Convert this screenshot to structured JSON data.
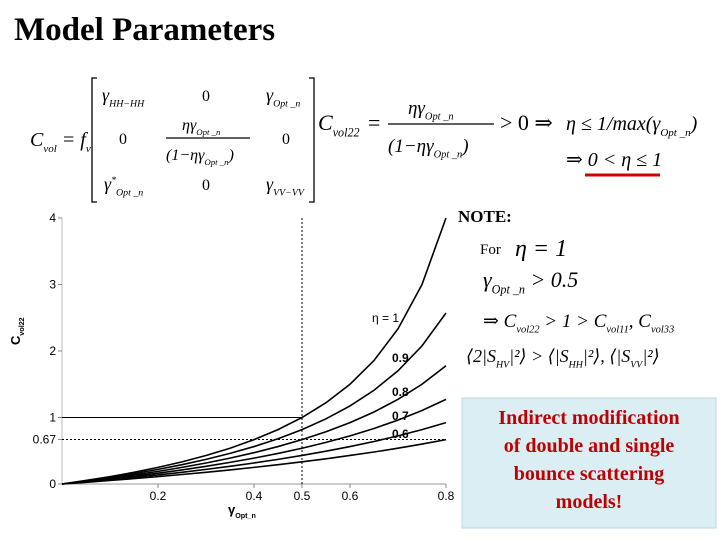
{
  "title": "Model Parameters",
  "equations": {
    "cvol": "C",
    "cvol_sub": "vol",
    "fv": " = f",
    "fv_sub": "v",
    "m11": "γ",
    "m11_sub": "HH−HH",
    "m12": "0",
    "m13": "γ",
    "m13_sub": "Opt _n",
    "m21": "0",
    "m22_num": "ηγ",
    "m22_num_sub": "Opt _n",
    "m22_den": "(1−ηγ",
    "m22_den_sub": "Opt _n",
    "m22_den_close": ")",
    "m23": "0",
    "m31": "γ",
    "m31_sup": "*",
    "m31_sub": "Opt _n",
    "m32": "0",
    "m33": "γ",
    "m33_sub": "VV−VV",
    "c22": "C",
    "c22_sub": "vol22",
    "eq": "=",
    "num": "ηγ",
    "num_sub": "Opt _n",
    "den": "(1−ηγ",
    "den_sub": "Opt _n",
    "den_close": ")",
    "gt": "> 0 ⇒",
    "cond1": "η ≤ 1/max(γ",
    "cond1_sub": "Opt _n",
    "cond1_close": ")",
    "cond2": "⇒ 0 < η ≤ 1"
  },
  "note": {
    "heading": "NOTE:",
    "for": "For",
    "eta": "η = 1",
    "g": "γ",
    "g_sub": "Opt _n",
    "g_rest": " > 0.5",
    "c_a": "⇒ C",
    "c_a_sub": "vol22",
    "c_b": " > 1 > C",
    "c_b_sub": "vol11",
    "c_c": ", C",
    "c_c_sub": "vol33",
    "s_a": "⟨2|S",
    "s_a_sub": "HV",
    "s_b": "|²⟩ > ⟨|S",
    "s_b_sub": "HH",
    "s_c": "|²⟩, ⟨|S",
    "s_c_sub": "VV",
    "s_d": "|²⟩"
  },
  "callout": [
    "Indirect modification",
    "of double and single",
    "bounce scattering",
    "models!"
  ],
  "chart_data": {
    "type": "line",
    "ylabel": "C",
    "ylabel_sub": "vol22",
    "xlabel": "γ",
    "xlabel_sub": "Opt_n",
    "x": [
      0,
      0.05,
      0.1,
      0.15,
      0.2,
      0.25,
      0.3,
      0.35,
      0.4,
      0.45,
      0.5,
      0.55,
      0.6,
      0.65,
      0.7,
      0.75,
      0.8
    ],
    "series": [
      {
        "name": "η = 1",
        "color": "#000000",
        "values": [
          0,
          0.053,
          0.111,
          0.176,
          0.25,
          0.333,
          0.429,
          0.538,
          0.667,
          0.818,
          1,
          1.222,
          1.5,
          1.857,
          2.333,
          3,
          4
        ]
      },
      {
        "name": "0.9",
        "color": "#000000",
        "values": [
          0,
          0.047,
          0.099,
          0.156,
          0.22,
          0.29,
          0.37,
          0.46,
          0.563,
          0.681,
          0.818,
          0.98,
          1.174,
          1.41,
          1.703,
          2.077,
          2.571
        ]
      },
      {
        "name": "0.8",
        "color": "#000000",
        "values": [
          0,
          0.042,
          0.087,
          0.136,
          0.19,
          0.25,
          0.316,
          0.389,
          0.471,
          0.563,
          0.667,
          0.786,
          0.923,
          1.083,
          1.273,
          1.5,
          1.778
        ]
      },
      {
        "name": "0.7",
        "color": "#000000",
        "values": [
          0,
          0.036,
          0.075,
          0.117,
          0.163,
          0.212,
          0.266,
          0.325,
          0.389,
          0.46,
          0.538,
          0.626,
          0.724,
          0.835,
          0.961,
          1.105,
          1.273
        ]
      },
      {
        "name": "0.6",
        "color": "#000000",
        "values": [
          0,
          0.031,
          0.064,
          0.099,
          0.136,
          0.176,
          0.22,
          0.266,
          0.316,
          0.37,
          0.429,
          0.493,
          0.563,
          0.639,
          0.724,
          0.818,
          0.923
        ]
      },
      {
        "name": null,
        "color": "#000000",
        "values": [
          0,
          0.026,
          0.053,
          0.081,
          0.111,
          0.143,
          0.176,
          0.212,
          0.25,
          0.29,
          0.333,
          0.379,
          0.429,
          0.481,
          0.538,
          0.6,
          0.667
        ]
      }
    ],
    "xlim": [
      0,
      0.8
    ],
    "ylim": [
      0,
      4
    ],
    "xticks": [
      0.2,
      0.4,
      0.5,
      0.6,
      0.8
    ],
    "yticks": [
      0,
      0.67,
      1,
      2,
      3,
      4
    ],
    "reference_lines": [
      {
        "axis": "x",
        "value": 0.5,
        "style": "dotted"
      },
      {
        "axis": "y",
        "value": 0.67,
        "style": "dotted"
      },
      {
        "axis": "y",
        "value": 1,
        "style": "solid",
        "x_end": 0.5
      }
    ]
  }
}
